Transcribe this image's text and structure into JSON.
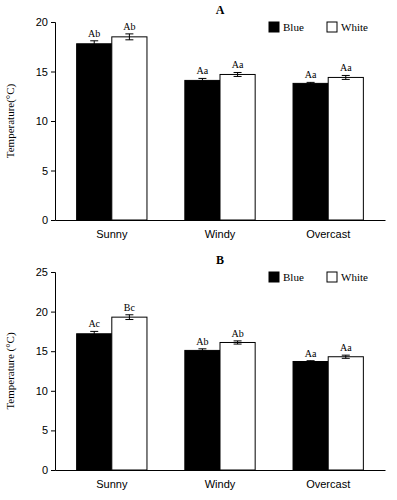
{
  "chart_data": [
    {
      "type": "bar",
      "title": "A",
      "y_label": "Temperature(°C)",
      "categories": [
        "Sunny",
        "Windy",
        "Overcast"
      ],
      "series": [
        {
          "name": "Blue",
          "color": "#000000",
          "values": [
            17.8,
            14.1,
            13.8
          ],
          "errors": [
            0.3,
            0.2,
            0.1
          ],
          "annotations": [
            "Ab",
            "Aa",
            "Aa"
          ]
        },
        {
          "name": "White",
          "color": "#ffffff",
          "values": [
            18.5,
            14.7,
            14.4
          ],
          "errors": [
            0.3,
            0.2,
            0.2
          ],
          "annotations": [
            "Ab",
            "Aa",
            "Aa"
          ]
        }
      ],
      "ylim": [
        0,
        20
      ],
      "yticks": [
        0,
        5,
        10,
        15,
        20
      ],
      "grid": false,
      "legend": "upper right"
    },
    {
      "type": "bar",
      "title": "B",
      "y_label": "Temperature (°C)",
      "categories": [
        "Sunny",
        "Windy",
        "Overcast"
      ],
      "series": [
        {
          "name": "Blue",
          "color": "#000000",
          "values": [
            17.2,
            15.1,
            13.7
          ],
          "errors": [
            0.3,
            0.2,
            0.1
          ],
          "annotations": [
            "Ac",
            "Ab",
            "Aa"
          ]
        },
        {
          "name": "White",
          "color": "#ffffff",
          "values": [
            19.3,
            16.1,
            14.3
          ],
          "errors": [
            0.3,
            0.2,
            0.2
          ],
          "annotations": [
            "Bc",
            "Ab",
            "Aa"
          ]
        }
      ],
      "ylim": [
        0,
        25
      ],
      "yticks": [
        0,
        5,
        10,
        15,
        20,
        25
      ],
      "grid": false,
      "legend": "upper right"
    }
  ]
}
